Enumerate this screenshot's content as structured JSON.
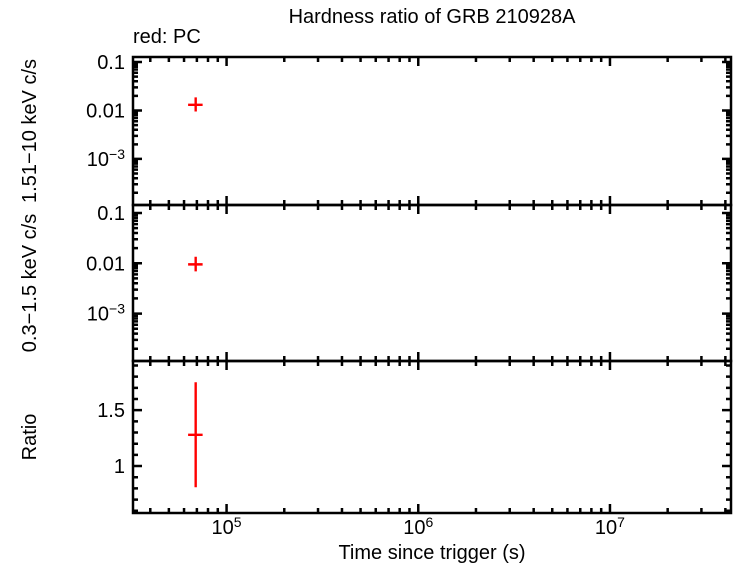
{
  "figure": {
    "title": "Hardness ratio of GRB 210928A",
    "legend_label": "red: PC",
    "x_axis_label": "Time since trigger (s)",
    "background_color": "#ffffff",
    "axis_color": "#000000",
    "marker_color": "#ff0000"
  },
  "x_ticks": [
    {
      "value": 100000,
      "base": "10",
      "exponent": "5"
    },
    {
      "value": 1000000,
      "base": "10",
      "exponent": "6"
    },
    {
      "value": 10000000,
      "base": "10",
      "exponent": "7"
    }
  ],
  "chart_data": [
    {
      "panel": "hard-band",
      "type": "scatter",
      "xscale": "log",
      "yscale": "log",
      "ylabel": "1.51−10 keV c/s",
      "xlim": [
        32500,
        42800000
      ],
      "ylim": [
        0.000112,
        0.127
      ],
      "yticks": [
        {
          "value": 0.1,
          "label": "0.1"
        },
        {
          "value": 0.01,
          "label": "0.01"
        },
        {
          "value": 0.001,
          "base": "10",
          "exponent": "−3"
        }
      ],
      "series": [
        {
          "name": "PC",
          "color": "#ff0000",
          "points": [
            {
              "t": 69000,
              "t_err_minus": 6000,
              "t_err_plus": 6000,
              "y": 0.0131,
              "y_err_minus": 0.0036,
              "y_err_plus": 0.0055
            }
          ]
        }
      ]
    },
    {
      "panel": "soft-band",
      "type": "scatter",
      "xscale": "log",
      "yscale": "log",
      "ylabel": "0.3−1.5 keV c/s",
      "xlim": [
        32500,
        42800000
      ],
      "ylim": [
        0.000114,
        0.144
      ],
      "yticks": [
        {
          "value": 0.1,
          "label": "0.1"
        },
        {
          "value": 0.01,
          "label": "0.01"
        },
        {
          "value": 0.001,
          "base": "10",
          "exponent": "−3"
        }
      ],
      "series": [
        {
          "name": "PC",
          "color": "#ff0000",
          "points": [
            {
              "t": 69000,
              "t_err_minus": 6000,
              "t_err_plus": 6000,
              "y": 0.0095,
              "y_err_minus": 0.0026,
              "y_err_plus": 0.004
            }
          ]
        }
      ]
    },
    {
      "panel": "ratio",
      "type": "scatter",
      "xscale": "log",
      "yscale": "linear",
      "ylabel": "Ratio",
      "xlim": [
        32500,
        42800000
      ],
      "ylim": [
        0.58,
        1.94
      ],
      "yminor_step": 0.1,
      "yticks": [
        {
          "value": 1,
          "label": "1"
        },
        {
          "value": 1.5,
          "label": "1.5"
        }
      ],
      "series": [
        {
          "name": "PC",
          "color": "#ff0000",
          "points": [
            {
              "t": 69000,
              "t_err_minus": 6000,
              "t_err_plus": 6000,
              "y": 1.28,
              "y_err_minus": 0.47,
              "y_err_plus": 0.47
            }
          ]
        }
      ]
    }
  ]
}
